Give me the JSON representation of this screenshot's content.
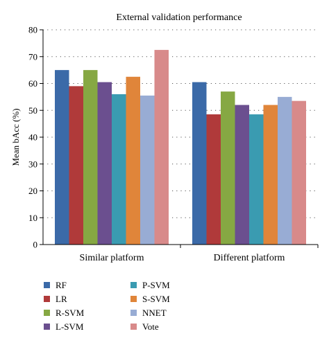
{
  "chart_data": {
    "type": "bar",
    "title": "External validation performance",
    "xlabel": "",
    "ylabel": "Mean bAcc (%)",
    "ylim": [
      0,
      80
    ],
    "yticks": [
      0,
      10,
      20,
      30,
      40,
      50,
      60,
      70,
      80
    ],
    "grid": "horizontal dotted",
    "legend_position": "bottom",
    "categories": [
      "Similar platform",
      "Different platform"
    ],
    "series": [
      {
        "name": "RF",
        "color": "#3b6aa8",
        "values": [
          65,
          60.5
        ]
      },
      {
        "name": "LR",
        "color": "#b03a3a",
        "values": [
          59,
          48.5
        ]
      },
      {
        "name": "R-SVM",
        "color": "#86a843",
        "values": [
          65,
          57
        ]
      },
      {
        "name": "L-SVM",
        "color": "#6b4f8f",
        "values": [
          60.5,
          52
        ]
      },
      {
        "name": "P-SVM",
        "color": "#3a9bb1",
        "values": [
          56,
          48.5
        ]
      },
      {
        "name": "S-SVM",
        "color": "#e0853a",
        "values": [
          62.5,
          52
        ]
      },
      {
        "name": "NNET",
        "color": "#98acd4",
        "values": [
          55.5,
          55
        ]
      },
      {
        "name": "Vote",
        "color": "#d88a8a",
        "values": [
          72.5,
          53.5
        ]
      }
    ]
  }
}
